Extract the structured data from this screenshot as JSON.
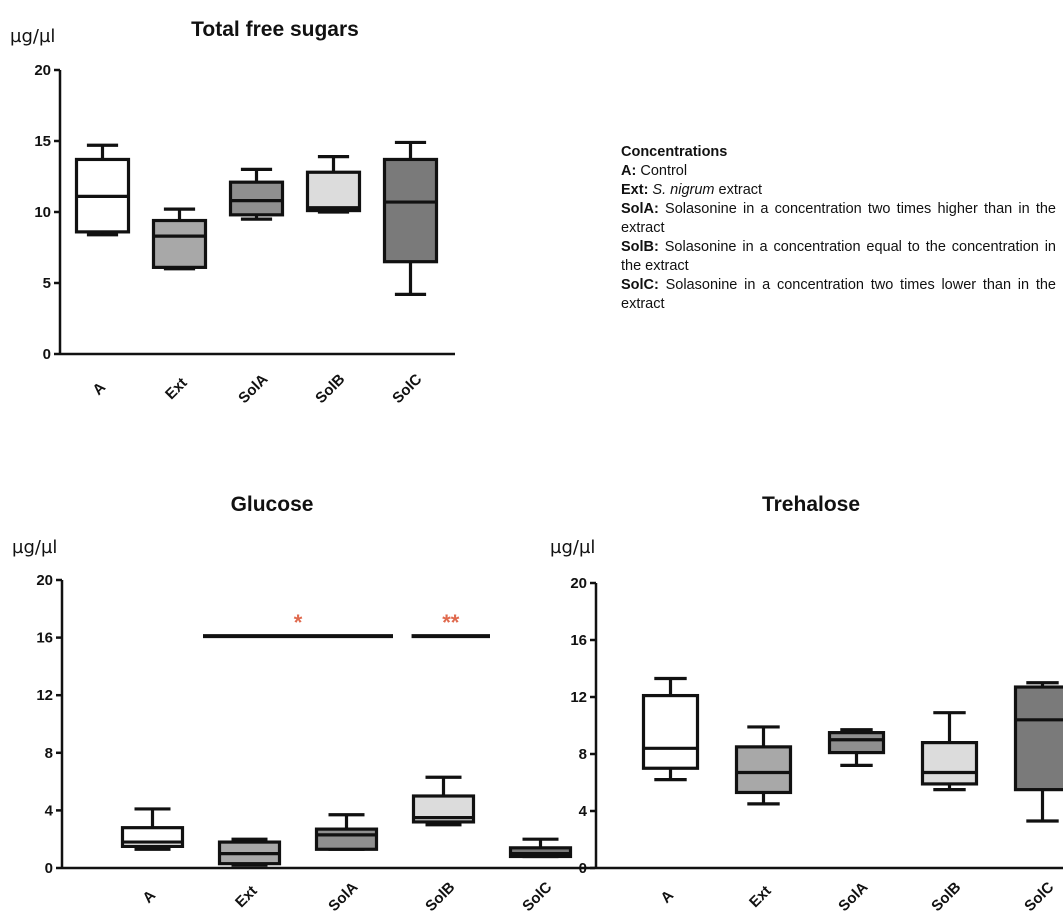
{
  "chart_data": [
    {
      "type": "box",
      "title": "Total free sugars",
      "ylabel": "µg/µl",
      "ylim": [
        0,
        20
      ],
      "yticks": [
        0,
        5,
        10,
        15,
        20
      ],
      "categories": [
        "A",
        "Ext",
        "SolA",
        "SolB",
        "SolC"
      ],
      "boxes": [
        {
          "min": 8.4,
          "q1": 8.6,
          "median": 11.1,
          "q3": 13.7,
          "max": 14.7,
          "fill": "#ffffff"
        },
        {
          "min": 6.0,
          "q1": 6.1,
          "median": 8.3,
          "q3": 9.4,
          "max": 10.2,
          "fill": "#a8a8a8"
        },
        {
          "min": 9.5,
          "q1": 9.8,
          "median": 10.8,
          "q3": 12.1,
          "max": 13.0,
          "fill": "#8f8f8f"
        },
        {
          "min": 10.0,
          "q1": 10.1,
          "median": 10.3,
          "q3": 12.8,
          "max": 13.9,
          "fill": "#dcdcdc"
        },
        {
          "min": 4.2,
          "q1": 6.5,
          "median": 10.7,
          "q3": 13.7,
          "max": 14.9,
          "fill": "#7a7a7a"
        }
      ],
      "significance": []
    },
    {
      "type": "box",
      "title": "Glucose",
      "ylabel": "µg/µl",
      "ylim": [
        0,
        20
      ],
      "yticks": [
        0,
        4,
        8,
        12,
        16,
        20
      ],
      "categories": [
        "A",
        "Ext",
        "SolA",
        "SolB",
        "SolC"
      ],
      "boxes": [
        {
          "min": 1.3,
          "q1": 1.5,
          "median": 1.8,
          "q3": 2.8,
          "max": 4.1,
          "fill": "#ffffff"
        },
        {
          "min": 0.2,
          "q1": 0.3,
          "median": 1.0,
          "q3": 1.8,
          "max": 2.0,
          "fill": "#a8a8a8"
        },
        {
          "min": 1.3,
          "q1": 1.3,
          "median": 2.3,
          "q3": 2.7,
          "max": 3.7,
          "fill": "#8f8f8f"
        },
        {
          "min": 3.0,
          "q1": 3.2,
          "median": 3.5,
          "q3": 5.0,
          "max": 6.3,
          "fill": "#dcdcdc"
        },
        {
          "min": 0.8,
          "q1": 0.8,
          "median": 1.0,
          "q3": 1.4,
          "max": 2.0,
          "fill": "#7a7a7a"
        }
      ],
      "significance": [
        {
          "from": 1,
          "to": 3,
          "y": 16.1,
          "label": "*"
        },
        {
          "from": 3.15,
          "to": 4,
          "y": 16.1,
          "label": "**"
        }
      ]
    },
    {
      "type": "box",
      "title": "Trehalose",
      "ylabel": "µg/µl",
      "ylim": [
        0,
        20
      ],
      "yticks": [
        0,
        4,
        8,
        12,
        16,
        20
      ],
      "categories": [
        "A",
        "Ext",
        "SolA",
        "SolB",
        "SolC"
      ],
      "boxes": [
        {
          "min": 6.2,
          "q1": 7.0,
          "median": 8.4,
          "q3": 12.1,
          "max": 13.3,
          "fill": "#ffffff"
        },
        {
          "min": 4.5,
          "q1": 5.3,
          "median": 6.7,
          "q3": 8.5,
          "max": 9.9,
          "fill": "#a8a8a8"
        },
        {
          "min": 7.2,
          "q1": 8.1,
          "median": 9.0,
          "q3": 9.5,
          "max": 9.7,
          "fill": "#8f8f8f"
        },
        {
          "min": 5.5,
          "q1": 5.9,
          "median": 6.7,
          "q3": 8.8,
          "max": 10.9,
          "fill": "#dcdcdc"
        },
        {
          "min": 3.3,
          "q1": 5.5,
          "median": 10.4,
          "q3": 12.7,
          "max": 13.0,
          "fill": "#7a7a7a"
        }
      ],
      "significance": []
    }
  ],
  "legend": {
    "title": "Concentrations",
    "items": [
      {
        "key": "A:",
        "text": " Control"
      },
      {
        "key": "Ext:",
        "italic": " S. nigrum",
        "text": " extract"
      },
      {
        "key": "SolA:",
        "text": " Solasonine in a concentration two times higher than in the extract"
      },
      {
        "key": "SolB:",
        "text": " Solasonine in a concentration  equal to the concentration in the extract"
      },
      {
        "key": "SolC:",
        "text": " Solasonine in a concentration two times lower than in the extract"
      }
    ]
  },
  "colors": {
    "significance_star": "#e06a4e"
  }
}
